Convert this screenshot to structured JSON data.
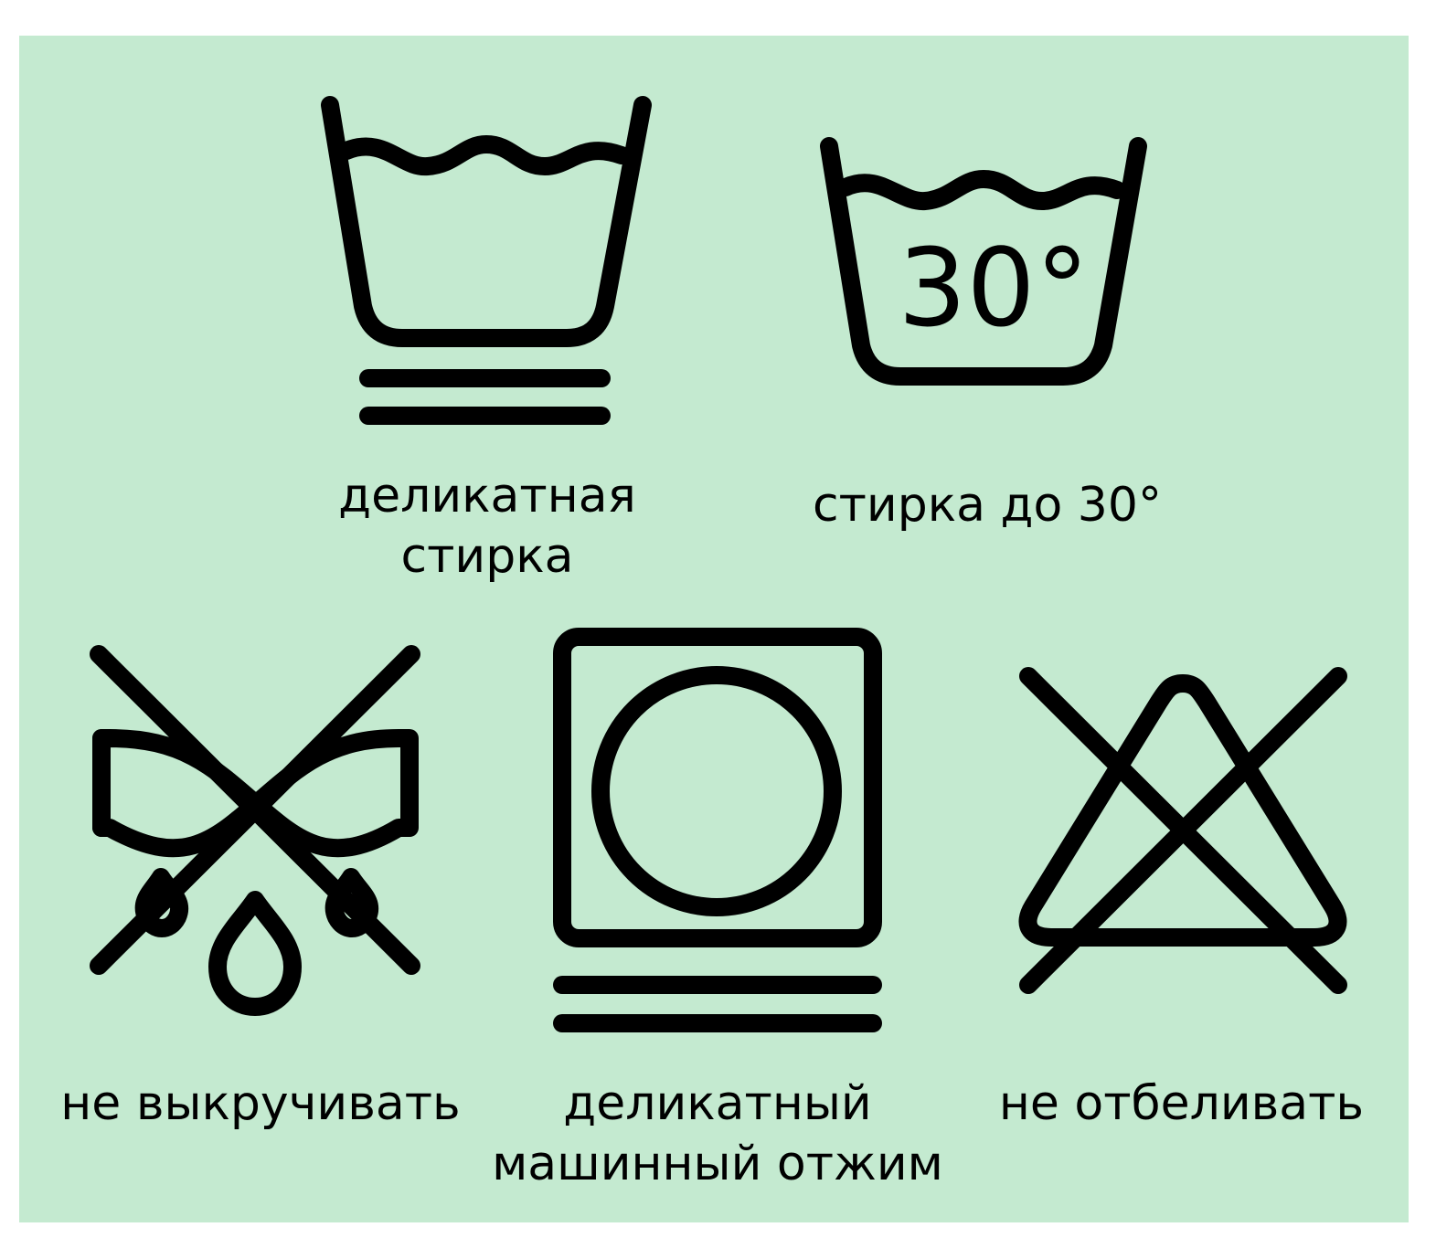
{
  "colors": {
    "background": "#ffffff",
    "panel": "#c4ead0",
    "ink": "#000000"
  },
  "symbols": [
    {
      "icon": "delicate-wash-icon",
      "caption_lines": [
        "деликатная",
        "стирка"
      ]
    },
    {
      "icon": "wash-30-icon",
      "temperature": "30°",
      "caption_lines": [
        "стирка до 30°"
      ]
    },
    {
      "icon": "do-not-wring-icon",
      "caption_lines": [
        "не выкручивать"
      ]
    },
    {
      "icon": "delicate-tumble-dry-icon",
      "caption_lines": [
        "деликатный",
        "машинный отжим"
      ]
    },
    {
      "icon": "do-not-bleach-icon",
      "caption_lines": [
        "не отбеливать"
      ]
    }
  ]
}
